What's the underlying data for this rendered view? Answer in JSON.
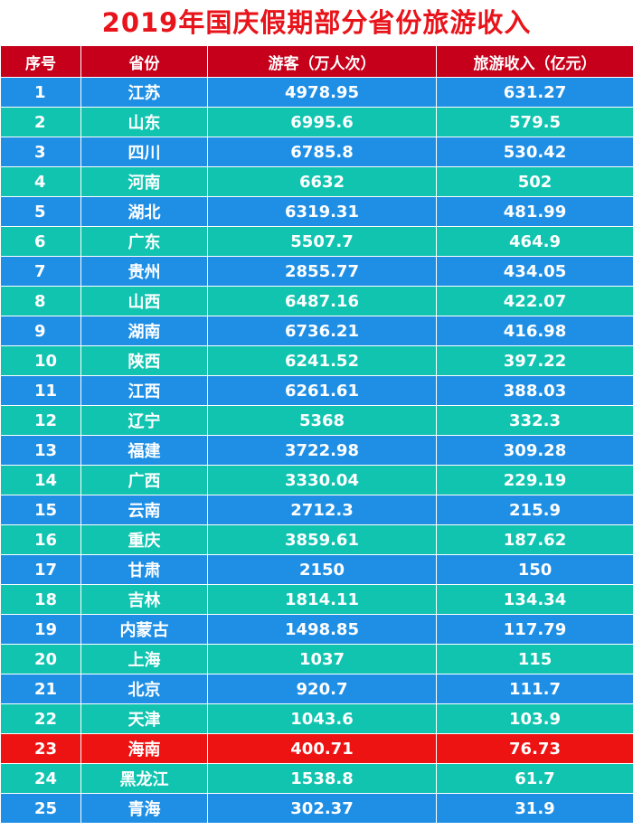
{
  "title": "2019年国庆假期部分省份旅游收入",
  "colors": {
    "title": "#e8141b",
    "header": "#c6001b",
    "row_blue": "#1f8fe6",
    "row_teal": "#10c4b0",
    "highlight": "#ee1313"
  },
  "chart_data": {
    "type": "table",
    "title": "2019年国庆假期部分省份旅游收入",
    "columns": [
      "序号",
      "省份",
      "游客（万人次）",
      "旅游收入（亿元）"
    ],
    "highlight_rank": "23",
    "rows": [
      {
        "rank": "1",
        "province": "江苏",
        "visitors": "4978.95",
        "revenue": "631.27"
      },
      {
        "rank": "2",
        "province": "山东",
        "visitors": "6995.6",
        "revenue": "579.5"
      },
      {
        "rank": "3",
        "province": "四川",
        "visitors": "6785.8",
        "revenue": "530.42"
      },
      {
        "rank": "4",
        "province": "河南",
        "visitors": "6632",
        "revenue": "502"
      },
      {
        "rank": "5",
        "province": "湖北",
        "visitors": "6319.31",
        "revenue": "481.99"
      },
      {
        "rank": "6",
        "province": "广东",
        "visitors": "5507.7",
        "revenue": "464.9"
      },
      {
        "rank": "7",
        "province": "贵州",
        "visitors": "2855.77",
        "revenue": "434.05"
      },
      {
        "rank": "8",
        "province": "山西",
        "visitors": "6487.16",
        "revenue": "422.07"
      },
      {
        "rank": "9",
        "province": "湖南",
        "visitors": "6736.21",
        "revenue": "416.98"
      },
      {
        "rank": "10",
        "province": "陕西",
        "visitors": "6241.52",
        "revenue": "397.22"
      },
      {
        "rank": "11",
        "province": "江西",
        "visitors": "6261.61",
        "revenue": "388.03"
      },
      {
        "rank": "12",
        "province": "辽宁",
        "visitors": "5368",
        "revenue": "332.3"
      },
      {
        "rank": "13",
        "province": "福建",
        "visitors": "3722.98",
        "revenue": "309.28"
      },
      {
        "rank": "14",
        "province": "广西",
        "visitors": "3330.04",
        "revenue": "229.19"
      },
      {
        "rank": "15",
        "province": "云南",
        "visitors": "2712.3",
        "revenue": "215.9"
      },
      {
        "rank": "16",
        "province": "重庆",
        "visitors": "3859.61",
        "revenue": "187.62"
      },
      {
        "rank": "17",
        "province": "甘肃",
        "visitors": "2150",
        "revenue": "150"
      },
      {
        "rank": "18",
        "province": "吉林",
        "visitors": "1814.11",
        "revenue": "134.34"
      },
      {
        "rank": "19",
        "province": "内蒙古",
        "visitors": "1498.85",
        "revenue": "117.79"
      },
      {
        "rank": "20",
        "province": "上海",
        "visitors": "1037",
        "revenue": "115"
      },
      {
        "rank": "21",
        "province": "北京",
        "visitors": "920.7",
        "revenue": "111.7"
      },
      {
        "rank": "22",
        "province": "天津",
        "visitors": "1043.6",
        "revenue": "103.9"
      },
      {
        "rank": "23",
        "province": "海南",
        "visitors": "400.71",
        "revenue": "76.73"
      },
      {
        "rank": "24",
        "province": "黑龙江",
        "visitors": "1538.8",
        "revenue": "61.7"
      },
      {
        "rank": "25",
        "province": "青海",
        "visitors": "302.37",
        "revenue": "31.9"
      }
    ]
  }
}
